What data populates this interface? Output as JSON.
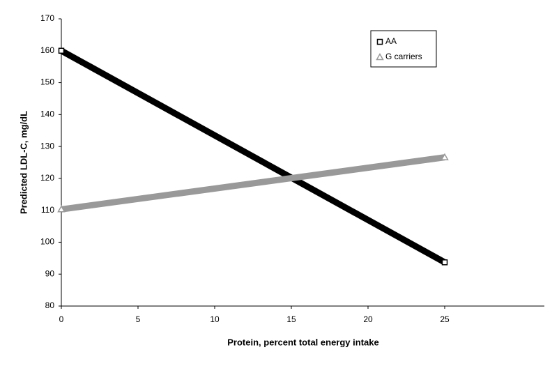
{
  "chart_data": {
    "type": "line",
    "x_label": "Protein, percent total energy intake",
    "y_label": "Predicted LDL-C, mg/dL",
    "x": [
      0,
      25
    ],
    "series": [
      {
        "name": "AA",
        "color": "#000000",
        "values": [
          160,
          93.7
        ]
      },
      {
        "name": "G carriers",
        "color": "#999999",
        "values": [
          110.3,
          126.6
        ]
      }
    ],
    "xlim": [
      0,
      31.5
    ],
    "xticks": [
      0,
      5,
      10,
      15,
      20,
      25
    ],
    "ylim": [
      80,
      170
    ],
    "yticks": [
      80,
      90,
      100,
      110,
      120,
      130,
      140,
      150,
      160,
      170
    ],
    "legend": "upper-right"
  }
}
